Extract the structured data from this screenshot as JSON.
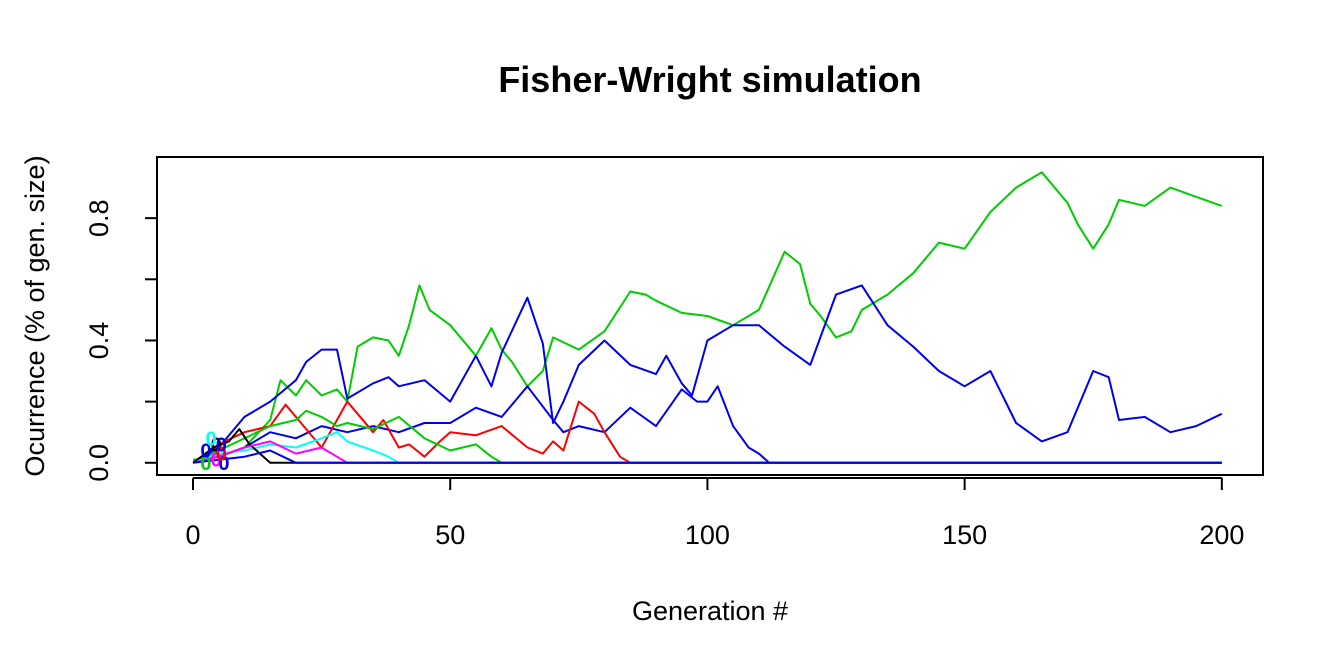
{
  "chart_data": {
    "type": "line",
    "title": "Fisher-Wright simulation",
    "xlabel": "Generation #",
    "ylabel": "Ocurrence (% of gen. size)",
    "xlim": [
      -7,
      208
    ],
    "ylim": [
      -0.04,
      1.0
    ],
    "xticks": [
      0,
      50,
      100,
      150,
      200
    ],
    "yticks": [
      0.0,
      0.2,
      0.4,
      0.6,
      0.8
    ],
    "ytick_labels": [
      "0.0",
      "",
      "0.4",
      "",
      "0.8"
    ],
    "grid": false,
    "legend": "none",
    "series": [
      {
        "color": "#00cd00",
        "x": [
          0,
          5,
          10,
          15,
          17,
          20,
          22,
          25,
          28,
          30,
          32,
          35,
          38,
          40,
          42,
          44,
          46,
          50,
          55,
          58,
          60,
          62,
          65,
          68,
          70,
          75,
          80,
          85,
          88,
          90,
          95,
          100,
          105,
          110,
          115,
          118,
          120,
          122,
          125,
          128,
          130,
          135,
          140,
          145,
          150,
          155,
          160,
          163,
          165,
          170,
          172,
          175,
          178,
          180,
          185,
          190,
          195,
          200
        ],
        "y": [
          0.01,
          0.02,
          0.05,
          0.14,
          0.27,
          0.22,
          0.27,
          0.22,
          0.24,
          0.2,
          0.38,
          0.41,
          0.4,
          0.35,
          0.45,
          0.58,
          0.5,
          0.45,
          0.35,
          0.44,
          0.37,
          0.33,
          0.25,
          0.3,
          0.41,
          0.37,
          0.43,
          0.56,
          0.55,
          0.53,
          0.49,
          0.48,
          0.45,
          0.5,
          0.69,
          0.65,
          0.52,
          0.48,
          0.41,
          0.43,
          0.5,
          0.55,
          0.62,
          0.72,
          0.7,
          0.82,
          0.9,
          0.93,
          0.95,
          0.85,
          0.78,
          0.7,
          0.78,
          0.86,
          0.84,
          0.9,
          0.87,
          0.84
        ]
      },
      {
        "color": "#0000ee",
        "x": [
          0,
          5,
          10,
          15,
          20,
          22,
          25,
          28,
          30,
          35,
          38,
          40,
          45,
          50,
          55,
          58,
          60,
          65,
          68,
          70,
          72,
          75,
          80,
          85,
          90,
          92,
          95,
          97,
          100,
          105,
          110,
          115,
          120,
          125,
          130,
          135,
          140,
          145,
          150,
          155,
          160,
          165,
          170,
          175,
          178,
          180,
          185,
          190,
          195,
          200
        ],
        "y": [
          0.0,
          0.05,
          0.15,
          0.2,
          0.27,
          0.33,
          0.37,
          0.37,
          0.21,
          0.26,
          0.28,
          0.25,
          0.27,
          0.2,
          0.35,
          0.25,
          0.36,
          0.54,
          0.39,
          0.13,
          0.2,
          0.32,
          0.4,
          0.32,
          0.29,
          0.35,
          0.26,
          0.22,
          0.4,
          0.45,
          0.45,
          0.38,
          0.32,
          0.55,
          0.58,
          0.45,
          0.38,
          0.3,
          0.25,
          0.3,
          0.13,
          0.07,
          0.1,
          0.3,
          0.28,
          0.14,
          0.15,
          0.1,
          0.12,
          0.16
        ]
      },
      {
        "color": "#0000ee",
        "x": [
          0,
          5,
          10,
          15,
          20,
          25,
          30,
          35,
          40,
          45,
          50,
          55,
          60,
          65,
          70,
          72,
          75,
          80,
          85,
          90,
          95,
          98,
          100,
          102,
          105,
          108,
          110,
          112,
          200
        ],
        "y": [
          0.0,
          0.02,
          0.05,
          0.1,
          0.08,
          0.12,
          0.1,
          0.12,
          0.1,
          0.13,
          0.13,
          0.18,
          0.15,
          0.25,
          0.14,
          0.1,
          0.12,
          0.1,
          0.18,
          0.12,
          0.24,
          0.2,
          0.2,
          0.25,
          0.12,
          0.05,
          0.03,
          0.0,
          0.0
        ]
      },
      {
        "color": "#ff0000",
        "x": [
          0,
          5,
          10,
          15,
          18,
          20,
          25,
          30,
          32,
          35,
          37,
          40,
          42,
          45,
          48,
          50,
          55,
          60,
          65,
          68,
          70,
          72,
          75,
          78,
          80,
          83,
          85,
          200
        ],
        "y": [
          0.0,
          0.06,
          0.1,
          0.12,
          0.19,
          0.15,
          0.05,
          0.2,
          0.16,
          0.1,
          0.14,
          0.05,
          0.06,
          0.02,
          0.07,
          0.1,
          0.09,
          0.12,
          0.05,
          0.03,
          0.07,
          0.04,
          0.2,
          0.16,
          0.1,
          0.02,
          0.0,
          0.0
        ]
      },
      {
        "color": "#00cd00",
        "x": [
          0,
          5,
          10,
          15,
          20,
          22,
          25,
          28,
          30,
          35,
          40,
          45,
          50,
          55,
          58,
          60,
          200
        ],
        "y": [
          0.0,
          0.04,
          0.08,
          0.12,
          0.14,
          0.17,
          0.15,
          0.12,
          0.13,
          0.11,
          0.15,
          0.08,
          0.04,
          0.06,
          0.02,
          0.0,
          0.0
        ]
      },
      {
        "color": "#00ffff",
        "x": [
          0,
          5,
          10,
          15,
          20,
          25,
          28,
          30,
          35,
          38,
          40,
          200
        ],
        "y": [
          0.0,
          0.03,
          0.04,
          0.06,
          0.05,
          0.08,
          0.1,
          0.07,
          0.04,
          0.02,
          0.0,
          0.0
        ]
      },
      {
        "color": "#000000",
        "x": [
          0,
          4,
          7,
          9,
          11,
          13,
          15,
          200
        ],
        "y": [
          0.0,
          0.05,
          0.07,
          0.11,
          0.06,
          0.03,
          0.0,
          0.0
        ]
      },
      {
        "color": "#ff00ff",
        "x": [
          0,
          5,
          10,
          15,
          20,
          25,
          28,
          30,
          200
        ],
        "y": [
          0.0,
          0.02,
          0.05,
          0.07,
          0.03,
          0.05,
          0.02,
          0.0,
          0.0
        ]
      },
      {
        "color": "#0000ee",
        "x": [
          0,
          5,
          10,
          15,
          20,
          200
        ],
        "y": [
          0.0,
          0.01,
          0.02,
          0.04,
          0.0,
          0.0
        ]
      }
    ],
    "point_labels": [
      {
        "text": "0",
        "color": "#00cd00",
        "x": 2.5,
        "y": 0.0
      },
      {
        "text": "0",
        "color": "#0000ee",
        "x": 2.5,
        "y": 0.04
      },
      {
        "text": "0",
        "color": "#ff00ff",
        "x": 4.5,
        "y": 0.01
      },
      {
        "text": "0",
        "color": "#000000",
        "x": 4.5,
        "y": 0.06
      },
      {
        "text": "0",
        "color": "#0000ee",
        "x": 6.0,
        "y": 0.0
      },
      {
        "text": "0",
        "color": "#00ffff",
        "x": 3.5,
        "y": 0.08
      },
      {
        "text": "0",
        "color": "#ff0000",
        "x": 5.5,
        "y": 0.03
      },
      {
        "text": "0",
        "color": "#0000ee",
        "x": 5.5,
        "y": 0.06
      }
    ]
  }
}
